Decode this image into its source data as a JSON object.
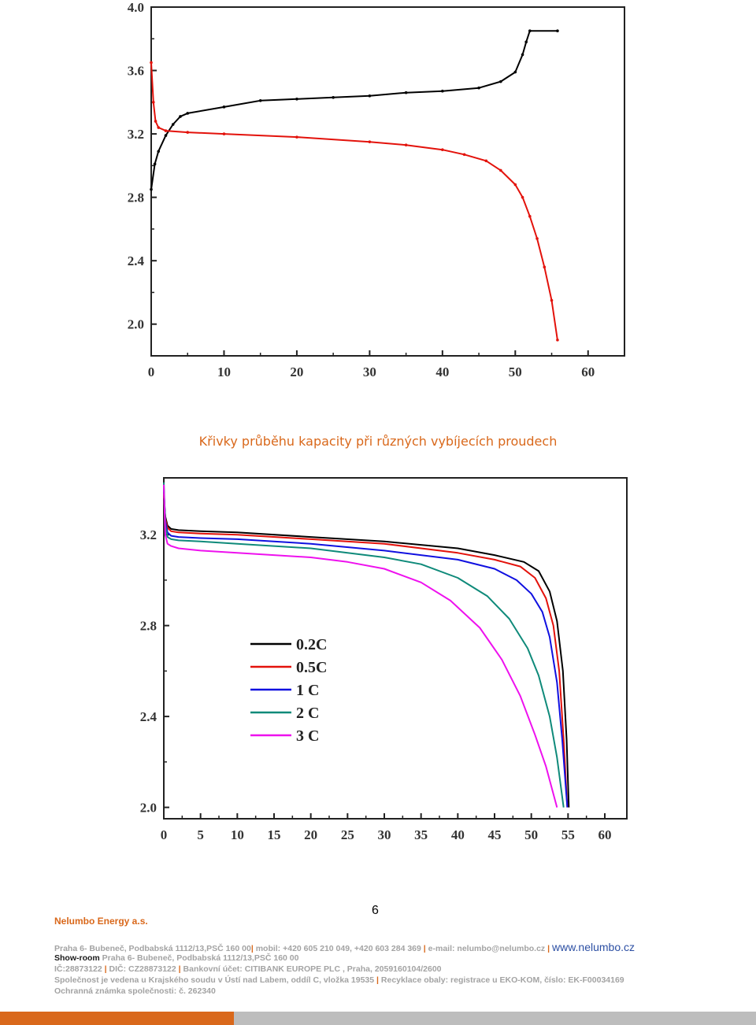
{
  "caption": "Křivky průběhu kapacity při různých vybíjecích proudech",
  "page_number": "6",
  "footer": {
    "company": "Nelumbo Energy a.s.",
    "line1_address": "Praha 6- Bubeneč, Podbabská 1112/13,PSČ 160 00",
    "line1_mobile": "mobil: +420 605 210 049, +420 603 284 369",
    "line1_email": "e-mail: nelumbo@nelumbo.cz",
    "line1_web": "www.nelumbo.cz",
    "line2_label": "Show-room",
    "line2_address": "Praha 6- Bubeneč, Podbabská 1112/13,PSČ 160 00",
    "line3_ic": "IČ:28873122",
    "line3_dic": "DIČ: CZ28873122",
    "line3_bank": "Bankovní účet: CITIBANK EUROPE PLC , Praha, 2059160104/2600",
    "line4_court": "Společnost je vedena u Krajského soudu v Ústí nad Labem, oddíl C, vložka 19535",
    "line4_recycling": "Recyklace obaly: registrace u EKO-KOM, číslo: EK-F00034169",
    "line5_trademark": "Ochranná známka společnosti: č. 262340"
  },
  "colors": {
    "accent": "#d9681b",
    "series_0_2c": "#000000",
    "series_0_5c": "#e3120b",
    "series_1c": "#1010e0",
    "series_2c": "#0f8a7a",
    "series_3c": "#ee11ee"
  },
  "chart_data": [
    {
      "type": "line",
      "title": "",
      "xlabel": "",
      "ylabel": "",
      "xlim": [
        0,
        65
      ],
      "ylim": [
        1.8,
        4.0
      ],
      "xticks": [
        "0",
        "10",
        "20",
        "30",
        "40",
        "50",
        "60"
      ],
      "yticks": [
        "2.0",
        "2.4",
        "2.8",
        "3.2",
        "3.6",
        "4.0"
      ],
      "grid": false,
      "legend": "none",
      "series": [
        {
          "color": "#000000",
          "markers": true,
          "x": [
            0,
            0.5,
            1,
            2,
            3,
            4,
            5,
            10,
            15,
            20,
            25,
            30,
            35,
            40,
            45,
            48,
            50,
            51,
            51.5,
            52,
            55.8
          ],
          "y": [
            2.85,
            3.01,
            3.09,
            3.19,
            3.26,
            3.31,
            3.33,
            3.37,
            3.41,
            3.42,
            3.43,
            3.44,
            3.46,
            3.47,
            3.49,
            3.53,
            3.59,
            3.7,
            3.78,
            3.85,
            3.85
          ]
        },
        {
          "color": "#e3120b",
          "markers": true,
          "x": [
            0,
            0.3,
            0.6,
            1,
            2,
            5,
            10,
            20,
            30,
            35,
            40,
            43,
            46,
            48,
            50,
            51,
            52,
            53,
            54,
            55,
            55.8
          ],
          "y": [
            3.65,
            3.4,
            3.28,
            3.24,
            3.22,
            3.21,
            3.2,
            3.18,
            3.15,
            3.13,
            3.1,
            3.07,
            3.03,
            2.97,
            2.88,
            2.8,
            2.68,
            2.54,
            2.36,
            2.15,
            1.9
          ]
        }
      ]
    },
    {
      "type": "line",
      "title": "",
      "xlabel": "",
      "ylabel": "",
      "xlim": [
        0,
        63
      ],
      "ylim": [
        1.95,
        3.45
      ],
      "xticks": [
        "0",
        "5",
        "10",
        "15",
        "20",
        "25",
        "30",
        "35",
        "40",
        "45",
        "50",
        "55",
        "60"
      ],
      "yticks": [
        "2.0",
        "2.4",
        "2.8",
        "3.2"
      ],
      "grid": false,
      "legend": "inside-left",
      "series": [
        {
          "name": "0.2C",
          "color": "#000000",
          "x": [
            0,
            0.2,
            0.5,
            1,
            2,
            5,
            10,
            20,
            30,
            40,
            45,
            49,
            51,
            52.5,
            53.5,
            54.3,
            54.8,
            55.1
          ],
          "y": [
            3.36,
            3.28,
            3.24,
            3.225,
            3.22,
            3.215,
            3.21,
            3.19,
            3.17,
            3.14,
            3.11,
            3.08,
            3.04,
            2.95,
            2.82,
            2.6,
            2.3,
            2.0
          ]
        },
        {
          "name": "0.5C",
          "color": "#e3120b",
          "x": [
            0,
            0.2,
            0.5,
            1,
            2,
            5,
            10,
            20,
            30,
            40,
            45,
            48.5,
            50.5,
            52,
            53,
            53.8,
            54.4,
            54.9
          ],
          "y": [
            3.38,
            3.27,
            3.23,
            3.215,
            3.21,
            3.205,
            3.2,
            3.18,
            3.16,
            3.12,
            3.09,
            3.06,
            3.01,
            2.92,
            2.8,
            2.6,
            2.3,
            2.0
          ]
        },
        {
          "name": "1 C",
          "color": "#1010e0",
          "x": [
            0,
            0.2,
            0.5,
            1,
            2,
            5,
            10,
            20,
            30,
            40,
            45,
            48,
            50,
            51.5,
            52.5,
            53.5,
            54.2,
            54.9
          ],
          "y": [
            3.4,
            3.26,
            3.21,
            3.195,
            3.19,
            3.185,
            3.18,
            3.16,
            3.13,
            3.09,
            3.05,
            3.0,
            2.94,
            2.86,
            2.75,
            2.55,
            2.3,
            2.0
          ]
        },
        {
          "name": "2 C",
          "color": "#0f8a7a",
          "x": [
            0,
            0.2,
            0.5,
            1,
            2,
            5,
            10,
            20,
            30,
            35,
            40,
            44,
            47,
            49.5,
            51,
            52.5,
            53.5,
            54.4
          ],
          "y": [
            3.43,
            3.24,
            3.19,
            3.18,
            3.175,
            3.17,
            3.16,
            3.14,
            3.1,
            3.07,
            3.01,
            2.93,
            2.83,
            2.7,
            2.58,
            2.4,
            2.22,
            2.0
          ]
        },
        {
          "name": "3 C",
          "color": "#ee11ee",
          "x": [
            0,
            0.2,
            0.5,
            1,
            2,
            5,
            10,
            20,
            25,
            30,
            35,
            39,
            43,
            46,
            48.5,
            50.5,
            52,
            53.5
          ],
          "y": [
            3.42,
            3.2,
            3.16,
            3.15,
            3.14,
            3.13,
            3.12,
            3.1,
            3.08,
            3.05,
            2.99,
            2.91,
            2.79,
            2.65,
            2.49,
            2.32,
            2.18,
            2.0
          ]
        }
      ]
    }
  ]
}
